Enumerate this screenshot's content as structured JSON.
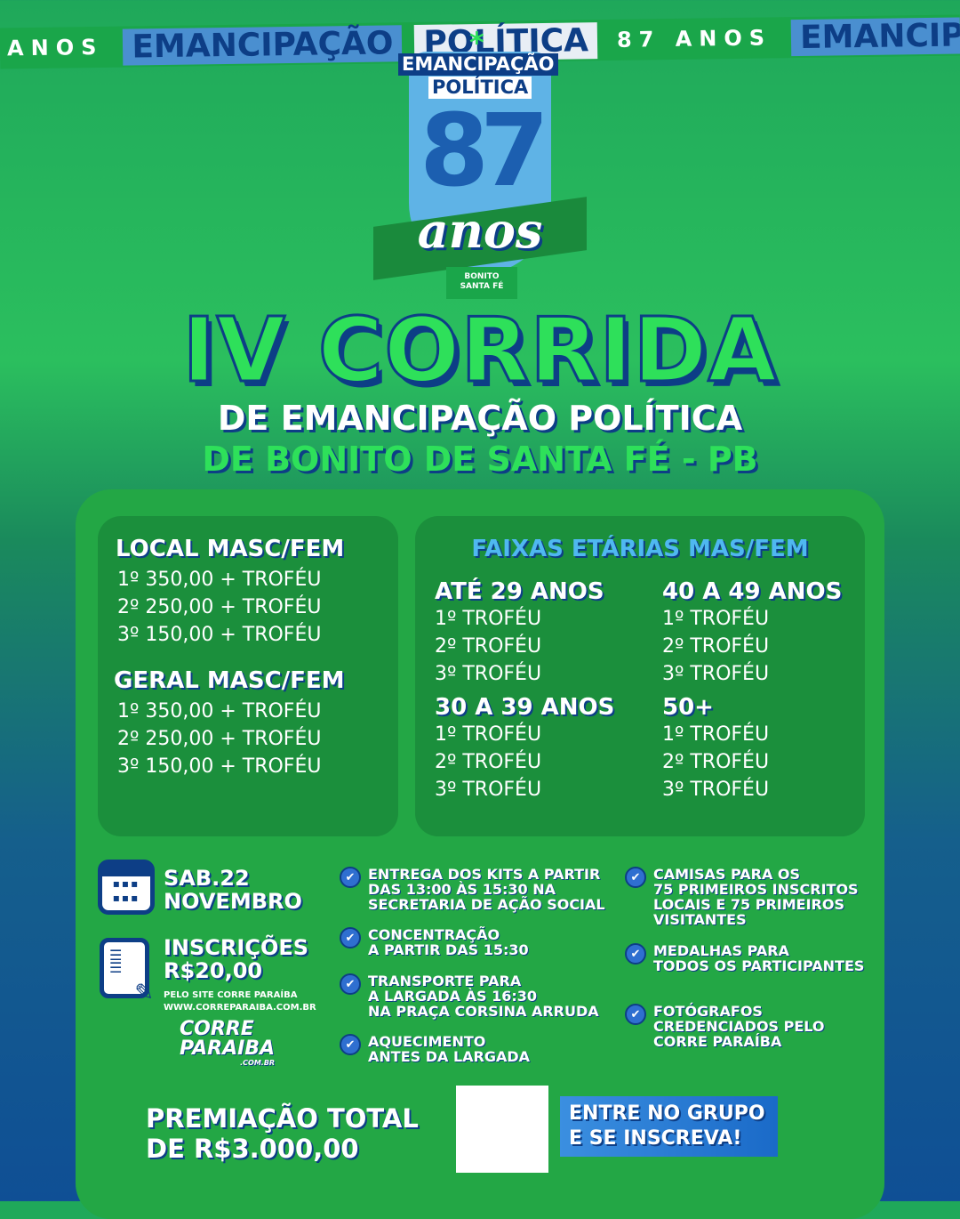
{
  "banner": {
    "anos": "ANOS",
    "emancipacao": "EMANCIPAÇÃO",
    "politica": "POLÍTICA",
    "anos87": "87 ANOS"
  },
  "logo": {
    "line1": "EMANCIPAÇÃO",
    "line2": "POLÍTICA",
    "number": "87",
    "anos": "anos",
    "municipio": "BONITO",
    "municipio2": "SANTA FÉ"
  },
  "title": {
    "main": "IV CORRIDA",
    "sub1": "DE EMANCIPAÇÃO POLÍTICA",
    "sub2": "DE BONITO DE SANTA FÉ - PB"
  },
  "prizes": {
    "local": {
      "heading": "LOCAL MASC/FEM",
      "items": [
        "1º 350,00 + TROFÉU",
        "2º 250,00 + TROFÉU",
        "3º 150,00 + TROFÉU"
      ]
    },
    "geral": {
      "heading": "GERAL MASC/FEM",
      "items": [
        "1º 350,00 + TROFÉU",
        "2º 250,00 + TROFÉU",
        "3º 150,00 + TROFÉU"
      ]
    },
    "faixas_heading": "FAIXAS ETÁRIAS MAS/FEM",
    "faixas": [
      {
        "heading": "ATÉ 29 ANOS",
        "items": [
          "1º TROFÉU",
          "2º TROFÉU",
          "3º TROFÉU"
        ]
      },
      {
        "heading": "40 A 49 ANOS",
        "items": [
          "1º TROFÉU",
          "2º TROFÉU",
          "3º TROFÉU"
        ]
      },
      {
        "heading": "30 A 39 ANOS",
        "items": [
          "1º TROFÉU",
          "2º TROFÉU",
          "3º TROFÉU"
        ]
      },
      {
        "heading": "50+",
        "items": [
          "1º TROFÉU",
          "2º TROFÉU",
          "3º TROFÉU"
        ]
      }
    ]
  },
  "event": {
    "date1": "SAB.22",
    "date2": "NOVEMBRO",
    "insc1": "INSCRIÇÕES",
    "insc2": "R$20,00",
    "site1": "PELO SITE CORRE PARAÍBA",
    "site2": "WWW.CORREPARAIBA.COM.BR",
    "brand1": "CORRE",
    "brand2": "PARAIBA",
    "brand3": ".COM.BR"
  },
  "info_left": [
    "ENTREGA DOS KITS A PARTIR\nDAS 13:00 ÀS 15:30 NA\nSECRETARIA DE AÇÃO SOCIAL",
    "CONCENTRAÇÃO\nA PARTIR DAS 15:30",
    "TRANSPORTE PARA\nA LARGADA ÀS 16:30\nNA PRAÇA CORSINA ARRUDA",
    "AQUECIMENTO\nANTES DA LARGADA"
  ],
  "info_right": [
    "CAMISAS PARA OS\n75 PRIMEIROS INSCRITOS\nLOCAIS E 75 PRIMEIROS\nVISITANTES",
    "MEDALHAS PARA\nTODOS OS PARTICIPANTES",
    "FOTÓGRAFOS\nCREDENCIADOS PELO\nCORRE PARAÍBA"
  ],
  "footer": {
    "total1": "PREMIAÇÃO TOTAL",
    "total2": "DE R$3.000,00",
    "cta1": "ENTRE NO GRUPO",
    "cta2": "E SE INSCREVA!"
  },
  "colors": {
    "green": "#23a745",
    "bright_green": "#2ee05a",
    "navy": "#0d3e86",
    "blue": "#4a8fd0"
  }
}
